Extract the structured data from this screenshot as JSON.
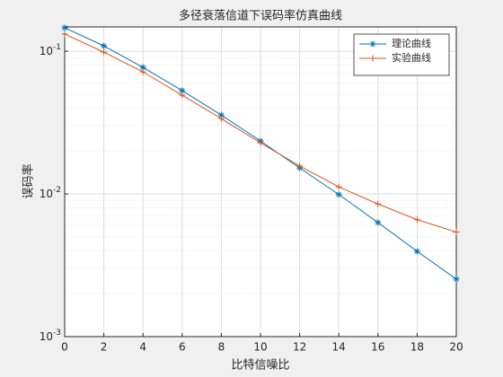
{
  "chart_data": {
    "type": "line",
    "title": "多径衰落信道下误码率仿真曲线",
    "xlabel": "比特信噪比",
    "ylabel": "误码率",
    "x": [
      0,
      2,
      4,
      6,
      8,
      10,
      12,
      14,
      16,
      18,
      20
    ],
    "series": [
      {
        "name": "理论曲线",
        "color": "#0072bd",
        "marker": "*",
        "values": [
          0.146,
          0.109,
          0.077,
          0.053,
          0.0357,
          0.0235,
          0.0152,
          0.0099,
          0.0063,
          0.00396,
          0.00253
        ]
      },
      {
        "name": "实验曲线",
        "color": "#d95319",
        "marker": "+",
        "values": [
          0.132,
          0.0985,
          0.0716,
          0.0492,
          0.0337,
          0.0228,
          0.0157,
          0.0112,
          0.0085,
          0.0066,
          0.0054
        ]
      }
    ],
    "xlim": [
      0,
      20
    ],
    "xticks": [
      0,
      2,
      4,
      6,
      8,
      10,
      12,
      14,
      16,
      18,
      20
    ],
    "ylim": [
      0.001,
      0.148
    ],
    "log_y": true,
    "yticks": [
      {
        "value": 0.001,
        "label": "10^-3"
      },
      {
        "value": 0.01,
        "label": "10^-2"
      },
      {
        "value": 0.1,
        "label": "10^-1"
      }
    ],
    "grid": true,
    "minor_grid": true,
    "legend": "northeast"
  }
}
